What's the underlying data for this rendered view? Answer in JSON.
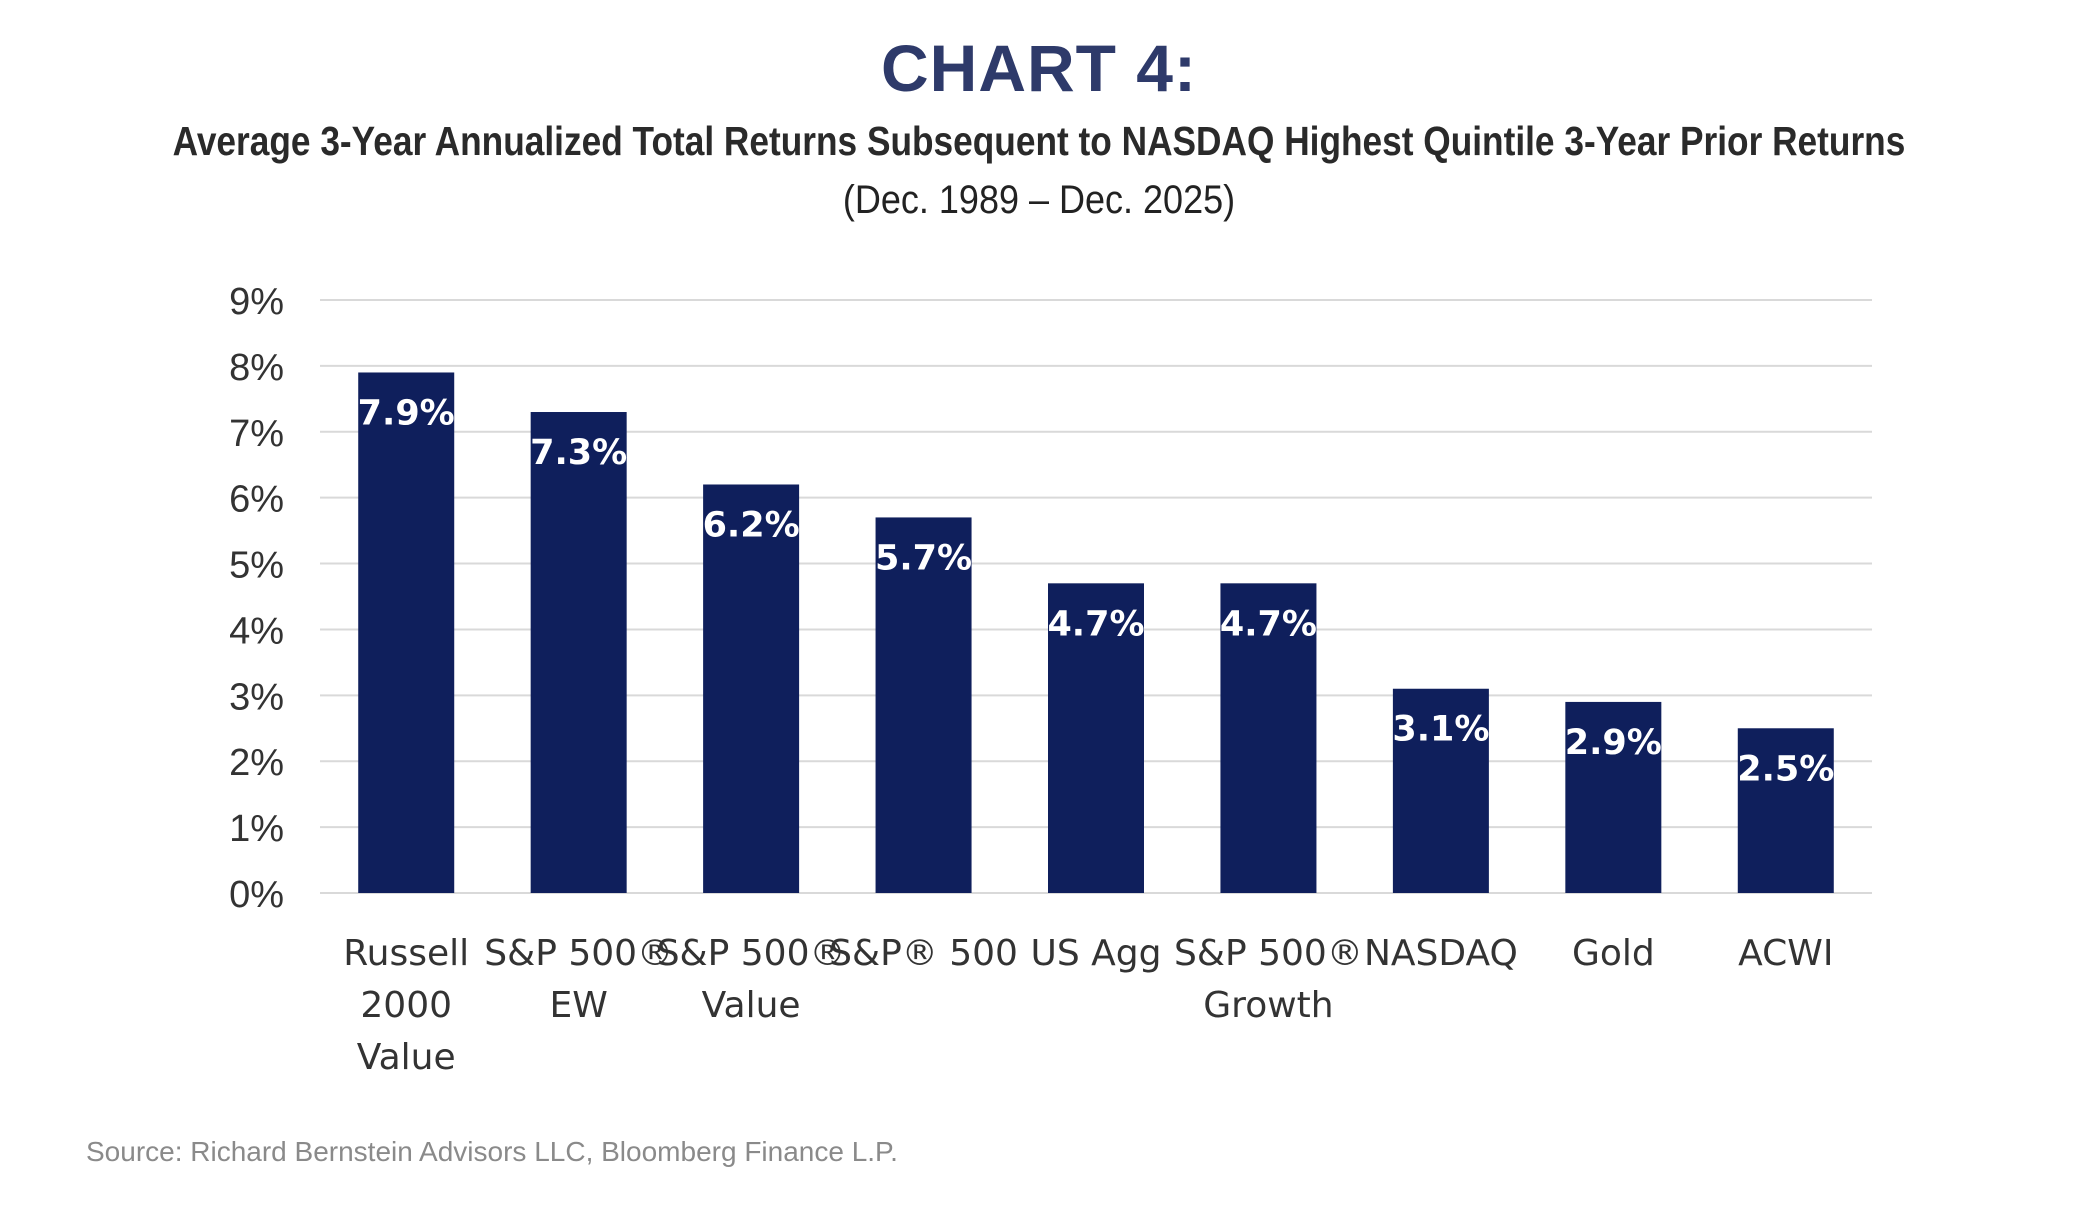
{
  "heading": {
    "title": "CHART 4:",
    "subtitle": "Average 3-Year Annualized Total Returns Subsequent to NASDAQ Highest Quintile 3-Year Prior Returns",
    "period": "(Dec. 1989 – Dec. 2025)"
  },
  "source": "Source: Richard Bernstein Advisors LLC, Bloomberg Finance L.P.",
  "colors": {
    "bar": "#0f1f5c",
    "grid": "#d9d9d9",
    "bar_label": "#ffffff",
    "axis_text": "#333333"
  },
  "chart_data": {
    "type": "bar",
    "title": "CHART 4:",
    "subtitle": "Average 3-Year Annualized Total Returns Subsequent to NASDAQ Highest Quintile 3-Year Prior Returns",
    "xlabel": "",
    "ylabel": "",
    "ylim": [
      0,
      9
    ],
    "yticks": [
      "0%",
      "1%",
      "2%",
      "3%",
      "4%",
      "5%",
      "6%",
      "7%",
      "8%",
      "9%"
    ],
    "grid": true,
    "categories": [
      [
        "Russell",
        "2000",
        "Value"
      ],
      [
        "S&P 500®",
        "EW"
      ],
      [
        "S&P 500®",
        "Value"
      ],
      [
        "S&P® 500"
      ],
      [
        "US Agg"
      ],
      [
        "S&P 500®",
        "Growth"
      ],
      [
        "NASDAQ"
      ],
      [
        "Gold"
      ],
      [
        "ACWI"
      ]
    ],
    "values": [
      7.9,
      7.3,
      6.2,
      5.7,
      4.7,
      4.7,
      3.1,
      2.9,
      2.5
    ],
    "data_labels": [
      "7.9%",
      "7.3%",
      "6.2%",
      "5.7%",
      "4.7%",
      "4.7%",
      "3.1%",
      "2.9%",
      "2.5%"
    ]
  }
}
